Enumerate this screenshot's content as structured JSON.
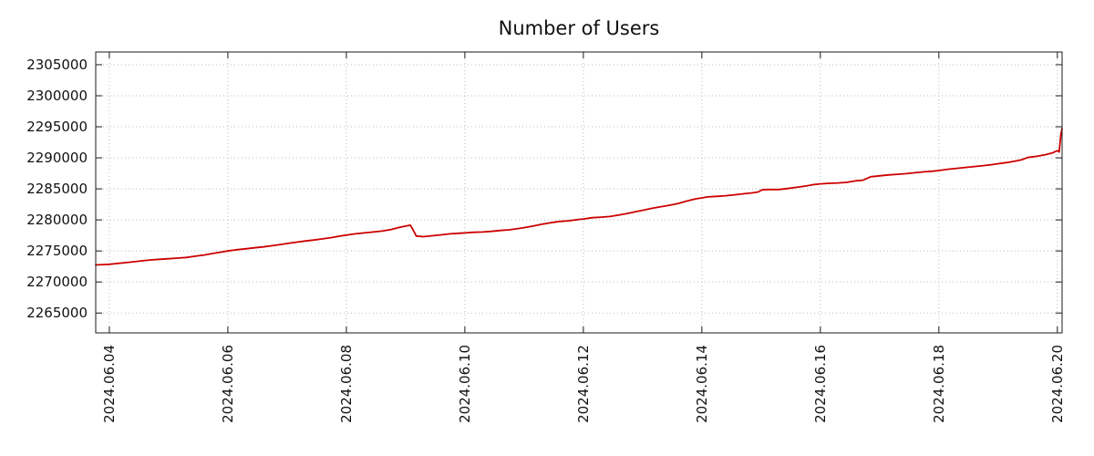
{
  "chart_data": {
    "type": "line",
    "title": "Number of Users",
    "xlabel": "",
    "ylabel": "",
    "legend": "none",
    "grid": "dotted",
    "series_color": "#cc0000",
    "grid_color": "#bbbbbb",
    "border_color": "#1a1a1a",
    "text_color": "#111111",
    "x_range_days": [
      3.77,
      20.08
    ],
    "y_range": [
      2261800,
      2307050
    ],
    "y_ticks": [
      {
        "value": 2265000,
        "label": "2265000"
      },
      {
        "value": 2270000,
        "label": "2270000"
      },
      {
        "value": 2275000,
        "label": "2275000"
      },
      {
        "value": 2280000,
        "label": "2280000"
      },
      {
        "value": 2285000,
        "label": "2285000"
      },
      {
        "value": 2290000,
        "label": "2290000"
      },
      {
        "value": 2295000,
        "label": "2295000"
      },
      {
        "value": 2300000,
        "label": "2300000"
      },
      {
        "value": 2305000,
        "label": "2305000"
      }
    ],
    "x_ticks": [
      {
        "day": 4,
        "label": "2024.06.04"
      },
      {
        "day": 6,
        "label": "2024.06.06"
      },
      {
        "day": 8,
        "label": "2024.06.08"
      },
      {
        "day": 10,
        "label": "2024.06.10"
      },
      {
        "day": 12,
        "label": "2024.06.12"
      },
      {
        "day": 14,
        "label": "2024.06.14"
      },
      {
        "day": 16,
        "label": "2024.06.16"
      },
      {
        "day": 18,
        "label": "2024.06.18"
      },
      {
        "day": 20,
        "label": "2024.06.20"
      }
    ],
    "points": [
      [
        3.77,
        2272750
      ],
      [
        3.9,
        2272800
      ],
      [
        4.0,
        2272850
      ],
      [
        4.1,
        2272950
      ],
      [
        4.25,
        2273100
      ],
      [
        4.4,
        2273250
      ],
      [
        4.55,
        2273400
      ],
      [
        4.7,
        2273550
      ],
      [
        4.85,
        2273650
      ],
      [
        5.0,
        2273750
      ],
      [
        5.15,
        2273850
      ],
      [
        5.3,
        2273950
      ],
      [
        5.45,
        2274150
      ],
      [
        5.6,
        2274350
      ],
      [
        5.75,
        2274600
      ],
      [
        5.9,
        2274850
      ],
      [
        6.0,
        2275000
      ],
      [
        6.15,
        2275200
      ],
      [
        6.3,
        2275350
      ],
      [
        6.45,
        2275500
      ],
      [
        6.6,
        2275650
      ],
      [
        6.75,
        2275850
      ],
      [
        6.9,
        2276050
      ],
      [
        7.0,
        2276200
      ],
      [
        7.15,
        2276400
      ],
      [
        7.3,
        2276600
      ],
      [
        7.45,
        2276750
      ],
      [
        7.6,
        2276950
      ],
      [
        7.75,
        2277150
      ],
      [
        7.9,
        2277400
      ],
      [
        8.0,
        2277550
      ],
      [
        8.15,
        2277750
      ],
      [
        8.3,
        2277900
      ],
      [
        8.45,
        2278050
      ],
      [
        8.6,
        2278200
      ],
      [
        8.75,
        2278450
      ],
      [
        8.9,
        2278800
      ],
      [
        9.0,
        2279000
      ],
      [
        9.08,
        2279150
      ],
      [
        9.12,
        2278500
      ],
      [
        9.18,
        2277400
      ],
      [
        9.3,
        2277300
      ],
      [
        9.45,
        2277450
      ],
      [
        9.6,
        2277600
      ],
      [
        9.75,
        2277750
      ],
      [
        9.9,
        2277850
      ],
      [
        10.0,
        2277900
      ],
      [
        10.15,
        2278000
      ],
      [
        10.3,
        2278050
      ],
      [
        10.45,
        2278150
      ],
      [
        10.6,
        2278300
      ],
      [
        10.75,
        2278400
      ],
      [
        10.9,
        2278600
      ],
      [
        11.0,
        2278750
      ],
      [
        11.15,
        2279000
      ],
      [
        11.3,
        2279300
      ],
      [
        11.45,
        2279550
      ],
      [
        11.6,
        2279750
      ],
      [
        11.75,
        2279850
      ],
      [
        11.9,
        2280050
      ],
      [
        12.0,
        2280150
      ],
      [
        12.15,
        2280350
      ],
      [
        12.3,
        2280450
      ],
      [
        12.45,
        2280550
      ],
      [
        12.6,
        2280800
      ],
      [
        12.75,
        2281050
      ],
      [
        12.9,
        2281350
      ],
      [
        13.0,
        2281550
      ],
      [
        13.15,
        2281850
      ],
      [
        13.3,
        2282100
      ],
      [
        13.45,
        2282350
      ],
      [
        13.6,
        2282650
      ],
      [
        13.75,
        2283050
      ],
      [
        13.9,
        2283400
      ],
      [
        14.0,
        2283550
      ],
      [
        14.1,
        2283700
      ],
      [
        14.25,
        2283800
      ],
      [
        14.4,
        2283900
      ],
      [
        14.55,
        2284050
      ],
      [
        14.7,
        2284200
      ],
      [
        14.85,
        2284350
      ],
      [
        14.95,
        2284500
      ],
      [
        15.02,
        2284850
      ],
      [
        15.1,
        2284900
      ],
      [
        15.3,
        2284900
      ],
      [
        15.45,
        2285050
      ],
      [
        15.6,
        2285250
      ],
      [
        15.75,
        2285450
      ],
      [
        15.9,
        2285700
      ],
      [
        16.0,
        2285800
      ],
      [
        16.15,
        2285900
      ],
      [
        16.3,
        2285950
      ],
      [
        16.45,
        2286050
      ],
      [
        16.6,
        2286300
      ],
      [
        16.72,
        2286400
      ],
      [
        16.85,
        2286950
      ],
      [
        17.0,
        2287100
      ],
      [
        17.15,
        2287250
      ],
      [
        17.3,
        2287350
      ],
      [
        17.45,
        2287450
      ],
      [
        17.6,
        2287600
      ],
      [
        17.75,
        2287750
      ],
      [
        17.9,
        2287850
      ],
      [
        18.0,
        2287950
      ],
      [
        18.15,
        2288150
      ],
      [
        18.3,
        2288300
      ],
      [
        18.45,
        2288450
      ],
      [
        18.6,
        2288600
      ],
      [
        18.75,
        2288750
      ],
      [
        18.9,
        2288900
      ],
      [
        19.0,
        2289050
      ],
      [
        19.15,
        2289250
      ],
      [
        19.3,
        2289500
      ],
      [
        19.4,
        2289700
      ],
      [
        19.5,
        2290050
      ],
      [
        19.65,
        2290250
      ],
      [
        19.8,
        2290500
      ],
      [
        19.92,
        2290800
      ],
      [
        20.0,
        2291150
      ],
      [
        20.03,
        2290950
      ],
      [
        20.06,
        2293800
      ],
      [
        20.08,
        2294700
      ]
    ]
  }
}
